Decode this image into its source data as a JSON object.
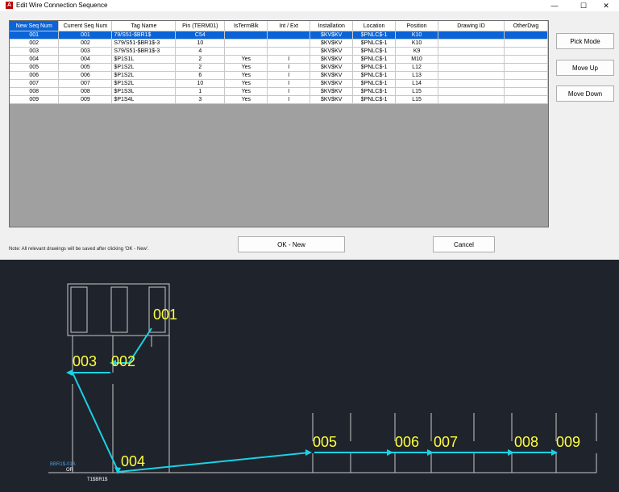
{
  "window": {
    "title": "Edit Wire Connection Sequence",
    "app_icon_text": "A",
    "minimize_glyph": "—",
    "maximize_glyph": "☐",
    "close_glyph": "✕"
  },
  "table": {
    "columns": [
      "New Seq Num",
      "Current Seq Num",
      "Tag Name",
      "Pin (TERM01)",
      "IsTermBlk",
      "Int / Ext",
      "Installation",
      "Location",
      "Position",
      "Drawing ID",
      "OtherDwg"
    ],
    "rows": [
      [
        "001",
        "001",
        "79/S51-$BR1$",
        "C54",
        "",
        "",
        "$KV$KV",
        "$PNLC$-1",
        "K10",
        "",
        ""
      ],
      [
        "002",
        "002",
        "S79/S51-$BR1$-3",
        "10",
        "",
        "",
        "$KV$KV",
        "$PNLC$-1",
        "K10",
        "",
        ""
      ],
      [
        "003",
        "003",
        "S79/S51-$BR1$-3",
        "4",
        "",
        "",
        "$KV$KV",
        "$PNLC$-1",
        "K9",
        "",
        ""
      ],
      [
        "004",
        "004",
        "$P1S1L",
        "2",
        "Yes",
        "I",
        "$KV$KV",
        "$PNLC$-1",
        "M10",
        "",
        ""
      ],
      [
        "005",
        "005",
        "$P1S2L",
        "2",
        "Yes",
        "I",
        "$KV$KV",
        "$PNLC$-1",
        "L12",
        "",
        ""
      ],
      [
        "006",
        "006",
        "$P1S2L",
        "6",
        "Yes",
        "I",
        "$KV$KV",
        "$PNLC$-1",
        "L13",
        "",
        ""
      ],
      [
        "007",
        "007",
        "$P1S2L",
        "10",
        "Yes",
        "I",
        "$KV$KV",
        "$PNLC$-1",
        "L14",
        "",
        ""
      ],
      [
        "008",
        "008",
        "$P1S3L",
        "1",
        "Yes",
        "I",
        "$KV$KV",
        "$PNLC$-1",
        "L15",
        "",
        ""
      ],
      [
        "009",
        "009",
        "$P1S4L",
        "3",
        "Yes",
        "I",
        "$KV$KV",
        "$PNLC$-1",
        "L15",
        "",
        ""
      ]
    ]
  },
  "buttons": {
    "pick_mode": "Pick Mode",
    "move_up": "Move Up",
    "move_down": "Move Down",
    "ok_new": "OK - New",
    "cancel": "Cancel"
  },
  "note": "Note: All relevant drawings will be saved after clicking 'OK - New'.",
  "drawing": {
    "seq_labels": [
      "001",
      "002",
      "003",
      "004",
      "005",
      "006",
      "007",
      "008",
      "009"
    ],
    "wire_label": "BBR1$-01A",
    "wire_color_label": "OR",
    "wire_tag": "T1$BR1$",
    "colors": {
      "background": "#1f232c",
      "seq": "#ffff3c",
      "wire": "#19d2e6",
      "frame": "#c8c8c8",
      "text": "#4aa0e0"
    }
  }
}
